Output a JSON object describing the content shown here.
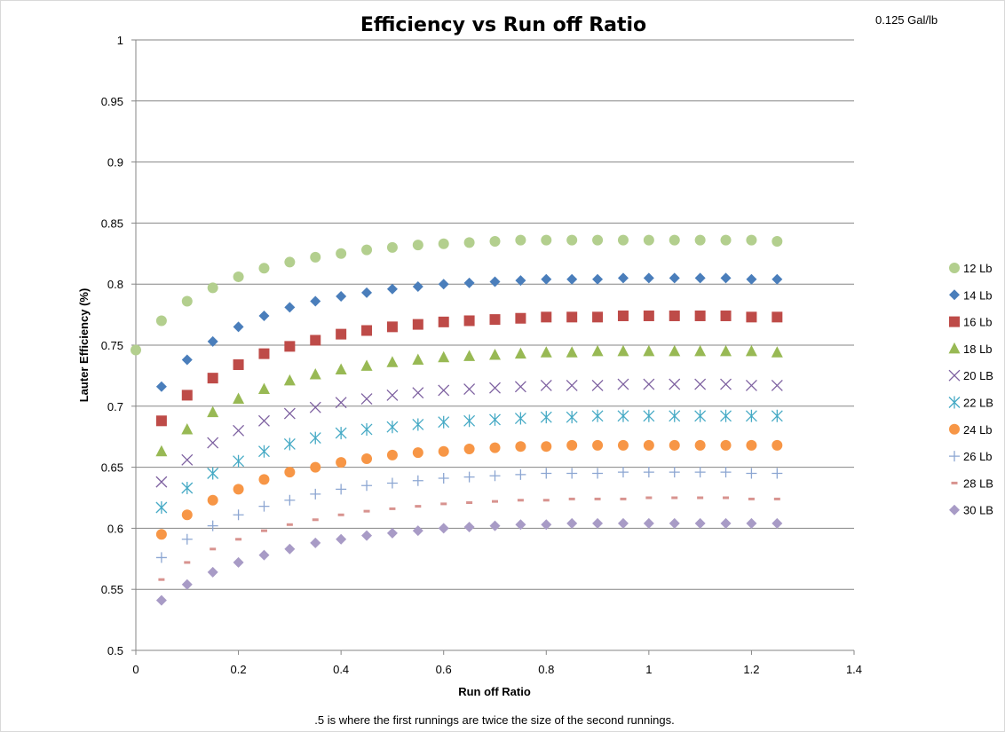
{
  "chart_data": {
    "type": "scatter",
    "title": "Efficiency vs Run off Ratio",
    "corner_note": "0.125 Gal/lb",
    "xlabel": "Run off Ratio",
    "ylabel": "Lauter Efficiency (%)",
    "footnote": ".5 is where the first runnings  are twice the size of the second runnings.",
    "xlim": [
      0,
      1.4
    ],
    "ylim": [
      0.5,
      1
    ],
    "x_ticks": [
      0,
      0.2,
      0.4,
      0.6,
      0.8,
      1,
      1.2,
      1.4
    ],
    "y_ticks": [
      0.5,
      0.55,
      0.6,
      0.65,
      0.7,
      0.75,
      0.8,
      0.85,
      0.9,
      0.95,
      1
    ],
    "x_tick_labels": [
      "0",
      "0.2",
      "0.4",
      "0.6",
      "0.8",
      "1",
      "1.2",
      "1.4"
    ],
    "y_tick_labels": [
      "0.5",
      "0.55",
      "0.6",
      "0.65",
      "0.7",
      "0.75",
      "0.8",
      "0.85",
      "0.9",
      "0.95",
      "1"
    ],
    "grid": "horizontal",
    "legend_position": "right",
    "x": [
      0.05,
      0.1,
      0.15,
      0.2,
      0.25,
      0.3,
      0.35,
      0.4,
      0.45,
      0.5,
      0.55,
      0.6,
      0.65,
      0.7,
      0.75,
      0.8,
      0.85,
      0.9,
      0.95,
      1.0,
      1.05,
      1.1,
      1.15,
      1.2,
      1.25
    ],
    "series": [
      {
        "name": "12 Lb",
        "marker": "circle",
        "color": "#b3cf8e",
        "extra_points": [
          [
            0,
            0.746
          ]
        ],
        "values": [
          0.77,
          0.786,
          0.797,
          0.806,
          0.813,
          0.818,
          0.822,
          0.825,
          0.828,
          0.83,
          0.832,
          0.833,
          0.834,
          0.835,
          0.836,
          0.836,
          0.836,
          0.836,
          0.836,
          0.836,
          0.836,
          0.836,
          0.836,
          0.836,
          0.835
        ]
      },
      {
        "name": "14 Lb",
        "marker": "diamond",
        "color": "#4a7ebb",
        "values": [
          0.716,
          0.738,
          0.753,
          0.765,
          0.774,
          0.781,
          0.786,
          0.79,
          0.793,
          0.796,
          0.798,
          0.8,
          0.801,
          0.802,
          0.803,
          0.804,
          0.804,
          0.804,
          0.805,
          0.805,
          0.805,
          0.805,
          0.805,
          0.804,
          0.804
        ]
      },
      {
        "name": "16 Lb",
        "marker": "square",
        "color": "#be4b48",
        "values": [
          0.688,
          0.709,
          0.723,
          0.734,
          0.743,
          0.749,
          0.754,
          0.759,
          0.762,
          0.765,
          0.767,
          0.769,
          0.77,
          0.771,
          0.772,
          0.773,
          0.773,
          0.773,
          0.774,
          0.774,
          0.774,
          0.774,
          0.774,
          0.773,
          0.773
        ]
      },
      {
        "name": "18 Lb",
        "marker": "triangle",
        "color": "#98b954",
        "values": [
          0.663,
          0.681,
          0.695,
          0.706,
          0.714,
          0.721,
          0.726,
          0.73,
          0.733,
          0.736,
          0.738,
          0.74,
          0.741,
          0.742,
          0.743,
          0.744,
          0.744,
          0.745,
          0.745,
          0.745,
          0.745,
          0.745,
          0.745,
          0.745,
          0.744
        ]
      },
      {
        "name": "20 LB",
        "marker": "x",
        "color": "#7d60a0",
        "values": [
          0.638,
          0.656,
          0.67,
          0.68,
          0.688,
          0.694,
          0.699,
          0.703,
          0.706,
          0.709,
          0.711,
          0.713,
          0.714,
          0.715,
          0.716,
          0.717,
          0.717,
          0.717,
          0.718,
          0.718,
          0.718,
          0.718,
          0.718,
          0.717,
          0.717
        ]
      },
      {
        "name": "22 LB",
        "marker": "star",
        "color": "#46aac5",
        "values": [
          0.617,
          0.633,
          0.645,
          0.655,
          0.663,
          0.669,
          0.674,
          0.678,
          0.681,
          0.683,
          0.685,
          0.687,
          0.688,
          0.689,
          0.69,
          0.691,
          0.691,
          0.692,
          0.692,
          0.692,
          0.692,
          0.692,
          0.692,
          0.692,
          0.692
        ]
      },
      {
        "name": "24 Lb",
        "marker": "circle",
        "color": "#f79646",
        "values": [
          0.595,
          0.611,
          0.623,
          0.632,
          0.64,
          0.646,
          0.65,
          0.654,
          0.657,
          0.66,
          0.662,
          0.663,
          0.665,
          0.666,
          0.667,
          0.667,
          0.668,
          0.668,
          0.668,
          0.668,
          0.668,
          0.668,
          0.668,
          0.668,
          0.668
        ]
      },
      {
        "name": "26 Lb",
        "marker": "plus",
        "color": "#8ca6d2",
        "values": [
          0.576,
          0.591,
          0.602,
          0.611,
          0.618,
          0.623,
          0.628,
          0.632,
          0.635,
          0.637,
          0.639,
          0.641,
          0.642,
          0.643,
          0.644,
          0.645,
          0.645,
          0.645,
          0.646,
          0.646,
          0.646,
          0.646,
          0.646,
          0.645,
          0.645
        ]
      },
      {
        "name": "28 LB",
        "marker": "dash",
        "color": "#d8938f",
        "values": [
          0.558,
          0.572,
          0.583,
          0.591,
          0.598,
          0.603,
          0.607,
          0.611,
          0.614,
          0.616,
          0.618,
          0.62,
          0.621,
          0.622,
          0.623,
          0.623,
          0.624,
          0.624,
          0.624,
          0.625,
          0.625,
          0.625,
          0.625,
          0.624,
          0.624
        ]
      },
      {
        "name": "30 LB",
        "marker": "diamond",
        "color": "#a89bc6",
        "values": [
          0.541,
          0.554,
          0.564,
          0.572,
          0.578,
          0.583,
          0.588,
          0.591,
          0.594,
          0.596,
          0.598,
          0.6,
          0.601,
          0.602,
          0.603,
          0.603,
          0.604,
          0.604,
          0.604,
          0.604,
          0.604,
          0.604,
          0.604,
          0.604,
          0.604
        ]
      }
    ]
  }
}
